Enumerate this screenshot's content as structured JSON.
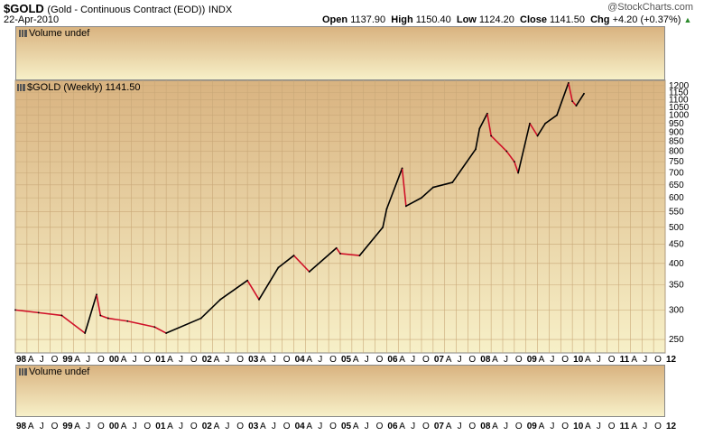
{
  "header": {
    "ticker": "$GOLD",
    "description": "(Gold - Continuous Contract (EOD))",
    "exchange": "INDX",
    "date": "22-Apr-2010",
    "brand": "@StockCharts.com",
    "open_label": "Open",
    "open": "1137.90",
    "high_label": "High",
    "high": "1150.40",
    "low_label": "Low",
    "low": "1124.20",
    "close_label": "Close",
    "close": "1141.50",
    "chg_label": "Chg",
    "chg": "+4.20 (+0.37%)"
  },
  "volume_top_label": "Volume undef",
  "volume_bottom_label": "Volume undef",
  "price_panel_label": "$GOLD (Weekly) 1141.50",
  "colors": {
    "up": "#000000",
    "down": "#d01028",
    "bg_top": "#d9b380",
    "bg_bottom": "#f7f0c8"
  },
  "chart_data": {
    "type": "line",
    "series": [
      {
        "name": "$GOLD (Weekly)",
        "x": [
          "1998-01",
          "1998-07",
          "1999-01",
          "1999-07",
          "1999-10",
          "1999-11",
          "2000-01",
          "2000-06",
          "2001-01",
          "2001-04",
          "2002-01",
          "2002-06",
          "2003-01",
          "2003-04",
          "2003-09",
          "2004-01",
          "2004-05",
          "2004-12",
          "2005-01",
          "2005-06",
          "2005-12",
          "2006-01",
          "2006-05",
          "2006-06",
          "2006-10",
          "2007-01",
          "2007-06",
          "2007-12",
          "2008-01",
          "2008-03",
          "2008-04",
          "2008-08",
          "2008-10",
          "2008-11",
          "2009-02",
          "2009-04",
          "2009-06",
          "2009-09",
          "2009-12",
          "2010-01",
          "2010-02",
          "2010-04"
        ],
        "values": [
          300,
          295,
          290,
          260,
          330,
          290,
          285,
          280,
          270,
          260,
          285,
          320,
          360,
          320,
          390,
          420,
          380,
          440,
          425,
          420,
          500,
          560,
          720,
          570,
          600,
          640,
          660,
          810,
          920,
          1010,
          880,
          800,
          750,
          700,
          950,
          880,
          950,
          1000,
          1220,
          1090,
          1060,
          1142
        ]
      }
    ],
    "x_ticks": [
      "98",
      "A",
      "J",
      "O",
      "99",
      "A",
      "J",
      "O",
      "00",
      "A",
      "J",
      "O",
      "01",
      "A",
      "J",
      "O",
      "02",
      "A",
      "J",
      "O",
      "03",
      "A",
      "J",
      "O",
      "04",
      "A",
      "J",
      "O",
      "05",
      "A",
      "J",
      "O",
      "06",
      "A",
      "J",
      "O",
      "07",
      "A",
      "J",
      "O",
      "08",
      "A",
      "J",
      "O",
      "09",
      "A",
      "J",
      "O",
      "10",
      "A",
      "J",
      "O",
      "11",
      "A",
      "J",
      "O",
      "12"
    ],
    "y_ticks": [
      250,
      300,
      350,
      400,
      450,
      500,
      550,
      600,
      650,
      700,
      750,
      800,
      850,
      900,
      950,
      1000,
      1050,
      1100,
      1150,
      1200
    ],
    "yscale": "log",
    "ylim": [
      230,
      1240
    ],
    "xlim": [
      "1998-01",
      "2012-01"
    ],
    "grid": true
  }
}
